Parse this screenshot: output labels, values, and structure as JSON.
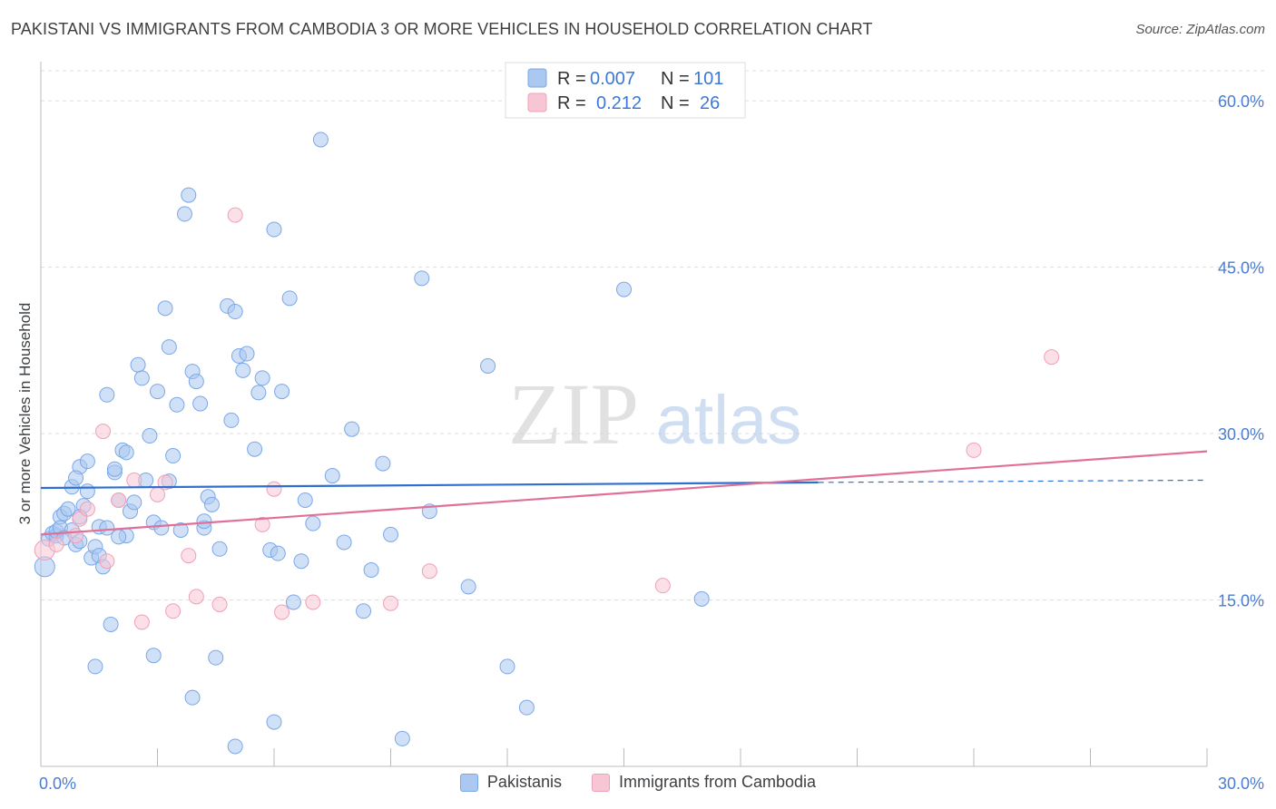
{
  "title": "PAKISTANI VS IMMIGRANTS FROM CAMBODIA 3 OR MORE VEHICLES IN HOUSEHOLD CORRELATION CHART",
  "source": "Source: ZipAtlas.com",
  "watermark": {
    "zip": "ZIP",
    "atlas": "atlas"
  },
  "chart_data": {
    "type": "scatter",
    "xlabel": "",
    "ylabel": "3 or more Vehicles in Household",
    "xlim": [
      0,
      30
    ],
    "ylim": [
      0,
      65
    ],
    "x_tick_labels": [
      {
        "value": 0,
        "label": "0.0%"
      },
      {
        "value": 30,
        "label": "30.0%"
      }
    ],
    "y_tick_labels": [
      {
        "value": 15,
        "label": "15.0%"
      },
      {
        "value": 30,
        "label": "30.0%"
      },
      {
        "value": 45,
        "label": "45.0%"
      },
      {
        "value": 60,
        "label": "60.0%"
      }
    ],
    "y_gridlines": [
      15,
      30,
      45,
      60
    ],
    "x_minor_ticks": [
      3,
      6,
      9,
      12,
      15,
      18,
      21,
      24,
      27,
      30
    ],
    "legend": [
      {
        "name": "Pakistanis",
        "r_label": "R = ",
        "r_value": "0.007",
        "n_label": "N = ",
        "n_value": "101"
      },
      {
        "name": "Immigrants from Cambodia",
        "r_label": "R = ",
        "r_value": "0.212",
        "n_label": "N = ",
        "n_value": "26"
      }
    ],
    "series": [
      {
        "name": "Pakistanis",
        "color": "#7ba7e8",
        "fill": "#aac8f0",
        "trend_color": "#2f6fcf",
        "trend": {
          "x_start": 0,
          "y_start": 25.1,
          "x_solid_end": 20.0,
          "y_solid_end": 25.6,
          "x_end": 30,
          "y_end": 25.8
        },
        "points": [
          [
            0.2,
            20.5
          ],
          [
            0.3,
            21.0
          ],
          [
            0.4,
            20.8
          ],
          [
            0.4,
            21.2
          ],
          [
            0.5,
            22.5
          ],
          [
            0.6,
            22.8
          ],
          [
            0.5,
            21.5
          ],
          [
            0.7,
            23.2
          ],
          [
            0.8,
            21.3
          ],
          [
            0.8,
            25.2
          ],
          [
            0.9,
            20.0
          ],
          [
            1.0,
            20.3
          ],
          [
            1.0,
            27.0
          ],
          [
            1.1,
            23.5
          ],
          [
            1.2,
            27.5
          ],
          [
            1.2,
            24.8
          ],
          [
            1.3,
            18.8
          ],
          [
            1.4,
            19.8
          ],
          [
            1.5,
            21.6
          ],
          [
            1.5,
            19.0
          ],
          [
            1.6,
            18.0
          ],
          [
            1.7,
            33.5
          ],
          [
            1.8,
            12.8
          ],
          [
            1.9,
            26.5
          ],
          [
            2.0,
            24.0
          ],
          [
            2.1,
            28.5
          ],
          [
            2.2,
            20.8
          ],
          [
            2.3,
            23.0
          ],
          [
            2.4,
            23.8
          ],
          [
            2.5,
            36.2
          ],
          [
            2.6,
            35.0
          ],
          [
            2.7,
            25.8
          ],
          [
            2.8,
            29.8
          ],
          [
            2.9,
            22.0
          ],
          [
            3.0,
            33.8
          ],
          [
            3.1,
            21.5
          ],
          [
            3.2,
            41.3
          ],
          [
            3.3,
            37.8
          ],
          [
            3.4,
            28.0
          ],
          [
            3.5,
            32.6
          ],
          [
            3.6,
            21.3
          ],
          [
            3.7,
            49.8
          ],
          [
            3.8,
            51.5
          ],
          [
            3.9,
            35.6
          ],
          [
            4.0,
            34.7
          ],
          [
            4.1,
            32.7
          ],
          [
            4.2,
            21.5
          ],
          [
            4.3,
            24.3
          ],
          [
            4.4,
            23.6
          ],
          [
            4.6,
            19.6
          ],
          [
            4.8,
            41.5
          ],
          [
            4.9,
            31.2
          ],
          [
            5.0,
            41.0
          ],
          [
            5.1,
            37.0
          ],
          [
            5.2,
            35.7
          ],
          [
            5.3,
            37.2
          ],
          [
            5.5,
            28.6
          ],
          [
            5.6,
            33.7
          ],
          [
            5.7,
            35.0
          ],
          [
            5.9,
            19.5
          ],
          [
            6.0,
            48.4
          ],
          [
            6.1,
            19.2
          ],
          [
            6.2,
            33.8
          ],
          [
            6.4,
            42.2
          ],
          [
            6.5,
            14.8
          ],
          [
            6.7,
            18.5
          ],
          [
            6.8,
            24.0
          ],
          [
            7.0,
            21.9
          ],
          [
            7.2,
            56.5
          ],
          [
            7.5,
            26.2
          ],
          [
            7.8,
            20.2
          ],
          [
            8.0,
            30.4
          ],
          [
            8.3,
            14.0
          ],
          [
            8.5,
            17.7
          ],
          [
            8.8,
            27.3
          ],
          [
            9.0,
            20.9
          ],
          [
            9.3,
            2.5
          ],
          [
            9.8,
            44.0
          ],
          [
            10.0,
            23.0
          ],
          [
            11.0,
            16.2
          ],
          [
            11.5,
            36.1
          ],
          [
            12.0,
            9.0
          ],
          [
            12.5,
            5.3
          ],
          [
            15.0,
            43.0
          ],
          [
            17.0,
            15.1
          ],
          [
            0.6,
            20.6
          ],
          [
            1.4,
            9.0
          ],
          [
            2.9,
            10.0
          ],
          [
            3.9,
            6.2
          ],
          [
            4.5,
            9.8
          ],
          [
            5.0,
            1.8
          ],
          [
            6.0,
            4.0
          ],
          [
            2.0,
            20.7
          ],
          [
            1.7,
            21.5
          ],
          [
            0.1,
            18.0
          ],
          [
            1.0,
            22.5
          ],
          [
            2.2,
            28.3
          ],
          [
            3.3,
            25.7
          ],
          [
            4.2,
            22.1
          ],
          [
            0.9,
            26.0
          ],
          [
            1.9,
            26.8
          ]
        ]
      },
      {
        "name": "Immigrants from Cambodia",
        "color": "#f0a0b8",
        "fill": "#f7c6d4",
        "trend_color": "#e07099",
        "trend": {
          "x_start": 0,
          "y_start": 20.9,
          "x_end": 30,
          "y_end": 28.4
        },
        "points": [
          [
            0.1,
            19.5
          ],
          [
            0.4,
            20.0
          ],
          [
            0.9,
            20.8
          ],
          [
            1.0,
            22.3
          ],
          [
            1.2,
            23.2
          ],
          [
            1.6,
            30.2
          ],
          [
            1.7,
            18.5
          ],
          [
            2.0,
            24.0
          ],
          [
            2.4,
            25.8
          ],
          [
            2.6,
            13.0
          ],
          [
            3.0,
            24.5
          ],
          [
            3.2,
            25.6
          ],
          [
            3.4,
            14.0
          ],
          [
            3.8,
            19.0
          ],
          [
            4.0,
            15.3
          ],
          [
            4.6,
            14.6
          ],
          [
            5.0,
            49.7
          ],
          [
            5.7,
            21.8
          ],
          [
            6.0,
            25.0
          ],
          [
            6.2,
            13.9
          ],
          [
            7.0,
            14.8
          ],
          [
            9.0,
            14.7
          ],
          [
            10.0,
            17.6
          ],
          [
            16.0,
            16.3
          ],
          [
            24.0,
            28.5
          ],
          [
            26.0,
            36.9
          ]
        ]
      }
    ]
  }
}
